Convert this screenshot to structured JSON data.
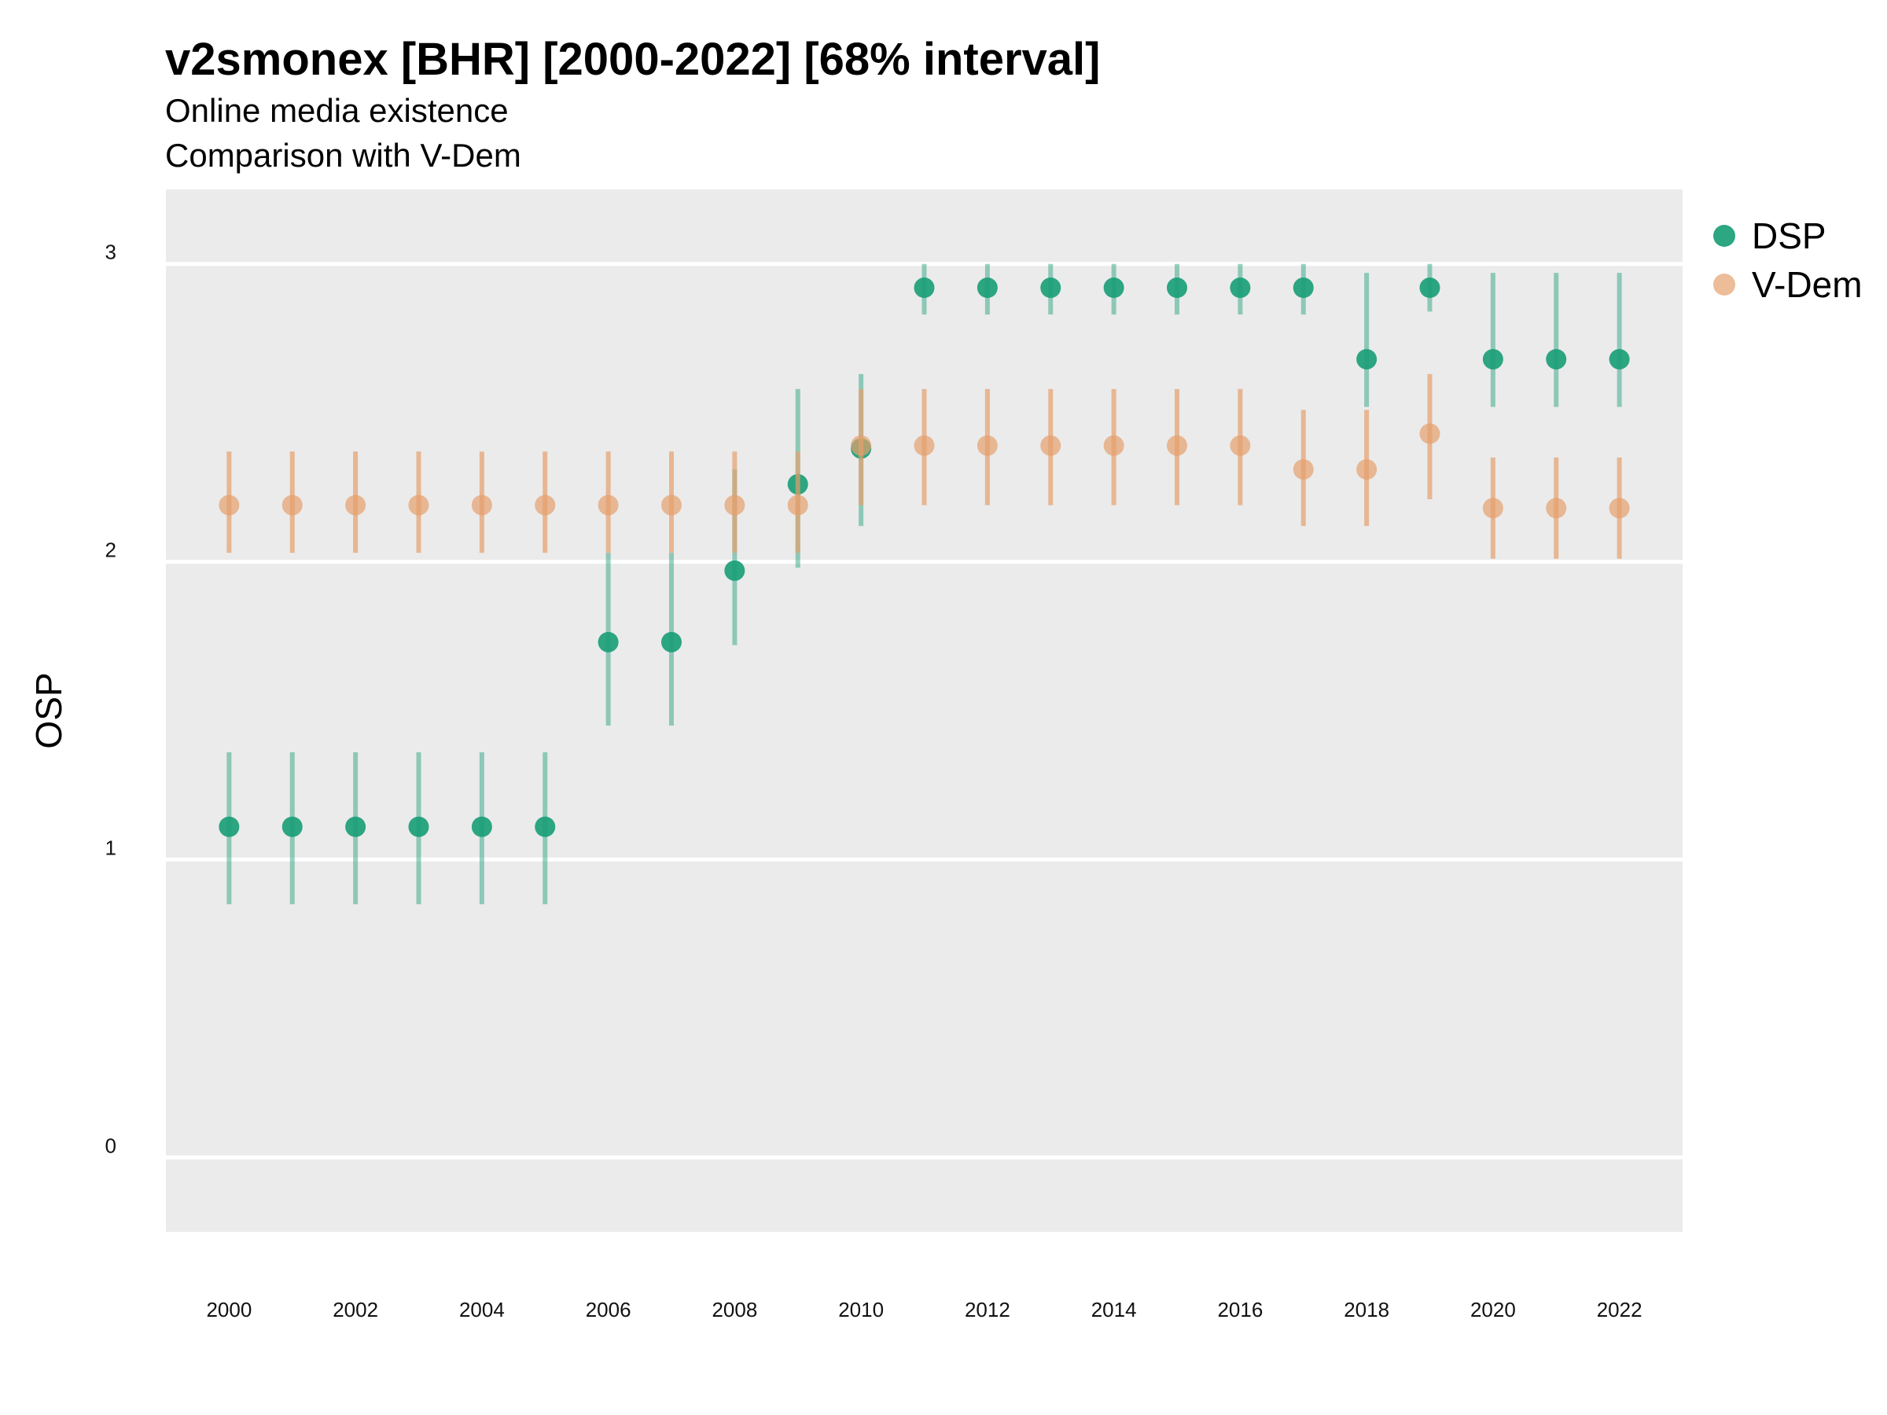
{
  "chart_data": {
    "type": "scatter",
    "title": "v2smonex [BHR] [2000-2022] [68% interval]",
    "subtitle": [
      "Online media existence",
      "Comparison with V-Dem"
    ],
    "ylabel": "OSP",
    "xlabel": "",
    "xlim": [
      1999,
      2023
    ],
    "ylim": [
      -0.25,
      3.25
    ],
    "x_ticks": [
      2000,
      2002,
      2004,
      2006,
      2008,
      2010,
      2012,
      2014,
      2016,
      2018,
      2020,
      2022
    ],
    "y_ticks": [
      0,
      1,
      2,
      3
    ],
    "grid": true,
    "legend_position": "right",
    "series": [
      {
        "name": "DSP",
        "color": "#1b9e77",
        "x": [
          2000,
          2001,
          2002,
          2003,
          2004,
          2005,
          2006,
          2007,
          2008,
          2009,
          2010,
          2011,
          2012,
          2013,
          2014,
          2015,
          2016,
          2017,
          2018,
          2019,
          2020,
          2021,
          2022
        ],
        "y": [
          1.11,
          1.11,
          1.11,
          1.11,
          1.11,
          1.11,
          1.73,
          1.73,
          1.97,
          2.26,
          2.38,
          2.92,
          2.92,
          2.92,
          2.92,
          2.92,
          2.92,
          2.92,
          2.68,
          2.92,
          2.68,
          2.68,
          2.68
        ],
        "lower": [
          0.85,
          0.85,
          0.85,
          0.85,
          0.85,
          0.85,
          1.45,
          1.45,
          1.72,
          1.98,
          2.12,
          2.83,
          2.83,
          2.83,
          2.83,
          2.83,
          2.83,
          2.83,
          2.52,
          2.84,
          2.52,
          2.52,
          2.52
        ],
        "upper": [
          1.36,
          1.36,
          1.36,
          1.36,
          1.36,
          1.36,
          2.03,
          2.03,
          2.31,
          2.58,
          2.63,
          3.0,
          3.0,
          3.0,
          3.0,
          3.0,
          3.0,
          3.0,
          2.97,
          3.0,
          2.97,
          2.97,
          2.97
        ]
      },
      {
        "name": "V-Dem",
        "color": "#e6a06c",
        "x": [
          2000,
          2001,
          2002,
          2003,
          2004,
          2005,
          2006,
          2007,
          2008,
          2009,
          2010,
          2011,
          2012,
          2013,
          2014,
          2015,
          2016,
          2017,
          2018,
          2019,
          2020,
          2021,
          2022
        ],
        "y": [
          2.19,
          2.19,
          2.19,
          2.19,
          2.19,
          2.19,
          2.19,
          2.19,
          2.19,
          2.19,
          2.39,
          2.39,
          2.39,
          2.39,
          2.39,
          2.39,
          2.39,
          2.31,
          2.31,
          2.43,
          2.18,
          2.18,
          2.18
        ],
        "lower": [
          2.03,
          2.03,
          2.03,
          2.03,
          2.03,
          2.03,
          2.03,
          2.03,
          2.03,
          2.03,
          2.19,
          2.19,
          2.19,
          2.19,
          2.19,
          2.19,
          2.19,
          2.12,
          2.12,
          2.21,
          2.01,
          2.01,
          2.01
        ],
        "upper": [
          2.37,
          2.37,
          2.37,
          2.37,
          2.37,
          2.37,
          2.37,
          2.37,
          2.37,
          2.37,
          2.58,
          2.58,
          2.58,
          2.58,
          2.58,
          2.58,
          2.58,
          2.51,
          2.51,
          2.63,
          2.35,
          2.35,
          2.35
        ]
      }
    ]
  }
}
